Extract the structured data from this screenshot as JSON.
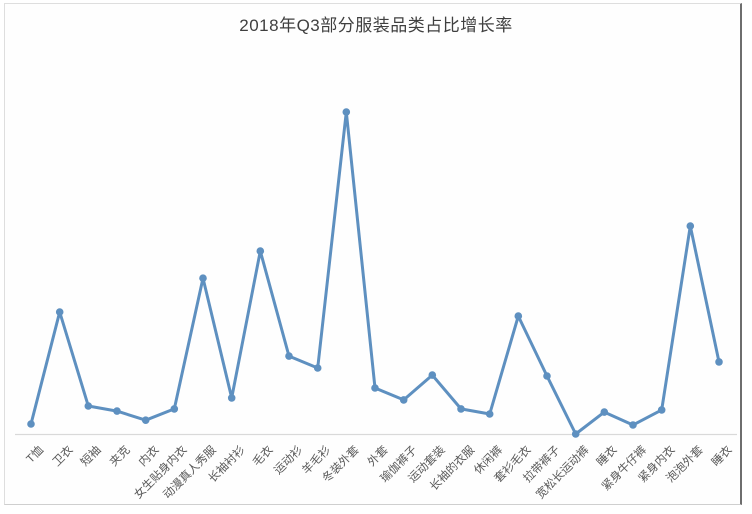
{
  "frame": {
    "border_light": "#dedede",
    "border_dark": "#6e6e6e"
  },
  "chart_data": {
    "type": "line",
    "title": "2018年Q3部分服装品类占比增长率",
    "categories": [
      "T恤",
      "卫衣",
      "短袖",
      "夹克",
      "内衣",
      "女生贴身内衣",
      "动漫真人秀服",
      "长袖衬衫",
      "毛衣",
      "运动衫",
      "羊毛衫",
      "冬装外套",
      "外套",
      "瑜伽裤子",
      "运动套装",
      "长袖的衣服",
      "休闲裤",
      "套衫毛衣",
      "拉带裤子",
      "宽松长运动裤",
      "睡衣",
      "紧身牛仔裤",
      "紧身内衣",
      "泡泡外套",
      "睡衣"
    ],
    "values": [
      3.1,
      37.9,
      8.7,
      7.1,
      4.3,
      7.8,
      48.4,
      11.2,
      56.8,
      24.2,
      20.5,
      100,
      14.3,
      10.6,
      18.3,
      7.8,
      6.2,
      36.6,
      18.0,
      0,
      6.8,
      2.8,
      7.5,
      64.6,
      22.4
    ],
    "units": "relative (no y-axis scale shown; peak 冬装外套 = 100)",
    "xlabel": "",
    "ylabel": "",
    "ylim": [
      0,
      105
    ],
    "y_axis_visible": false,
    "gridlines": false,
    "legend": "none",
    "line_color": "#5e90c0",
    "marker": "circle",
    "axis_line_color": "#d9d9d9",
    "label_color": "#595959",
    "title_color": "#3f3f3f"
  }
}
